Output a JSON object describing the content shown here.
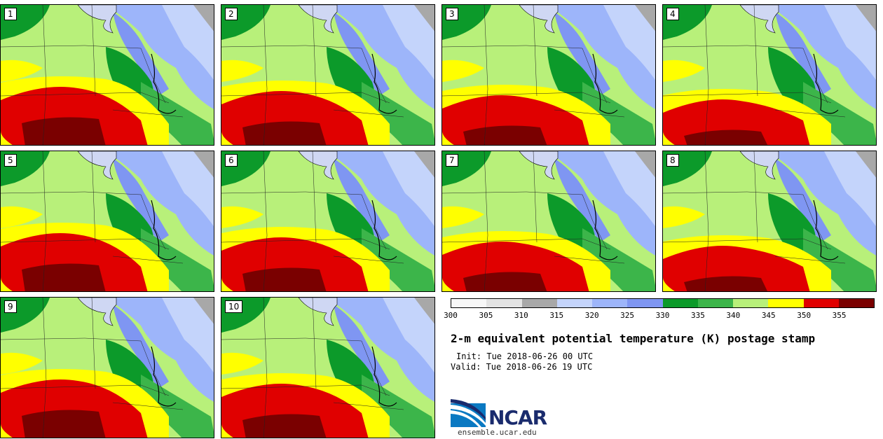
{
  "panels": [
    {
      "label": "1"
    },
    {
      "label": "2"
    },
    {
      "label": "3"
    },
    {
      "label": "4"
    },
    {
      "label": "5"
    },
    {
      "label": "6"
    },
    {
      "label": "7"
    },
    {
      "label": "8"
    },
    {
      "label": "9"
    },
    {
      "label": "10"
    }
  ],
  "colorbar": {
    "ticks": [
      "300",
      "305",
      "310",
      "315",
      "320",
      "325",
      "330",
      "335",
      "340",
      "345",
      "350",
      "355"
    ],
    "colors": [
      "#f7f7f7",
      "#e3e3e3",
      "#a8a8a8",
      "#c4d4fb",
      "#9db5fa",
      "#7f96f2",
      "#0c9a2a",
      "#3cb54a",
      "#b8f07a",
      "#ffff00",
      "#e00000",
      "#7a0000"
    ]
  },
  "title": "2-m equivalent potential temperature (K) postage stamp",
  "init": "Init: Tue 2018-06-26 00 UTC",
  "valid": "Valid: Tue 2018-06-26 19 UTC",
  "logo_text": "NCAR",
  "url": "ensemble.ucar.edu"
}
